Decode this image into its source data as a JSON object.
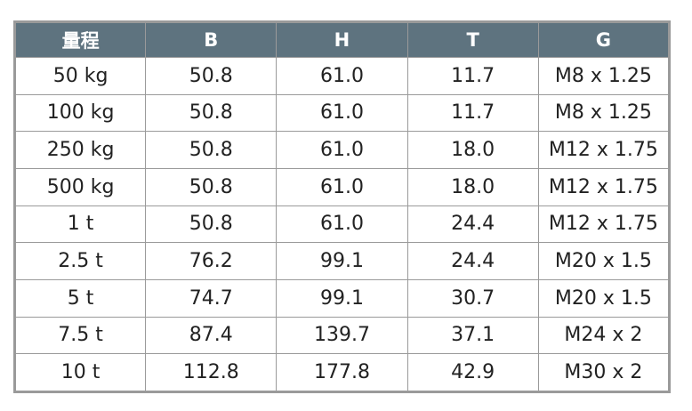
{
  "table": {
    "header": [
      "量程",
      "B",
      "H",
      "T",
      "G"
    ],
    "rows": [
      [
        "50 kg",
        "50.8",
        "61.0",
        "11.7",
        "M8 x 1.25"
      ],
      [
        "100 kg",
        "50.8",
        "61.0",
        "11.7",
        "M8 x 1.25"
      ],
      [
        "250 kg",
        "50.8",
        "61.0",
        "18.0",
        "M12 x 1.75"
      ],
      [
        "500 kg",
        "50.8",
        "61.0",
        "18.0",
        "M12 x 1.75"
      ],
      [
        "1 t",
        "50.8",
        "61.0",
        "24.4",
        "M12 x 1.75"
      ],
      [
        "2.5 t",
        "76.2",
        "99.1",
        "24.4",
        "M20 x 1.5"
      ],
      [
        "5 t",
        "74.7",
        "99.1",
        "30.7",
        "M20 x 1.5"
      ],
      [
        "7.5 t",
        "87.4",
        "139.7",
        "37.1",
        "M24 x 2"
      ],
      [
        "10 t",
        "112.8",
        "177.8",
        "42.9",
        "M30 x 2"
      ]
    ]
  }
}
